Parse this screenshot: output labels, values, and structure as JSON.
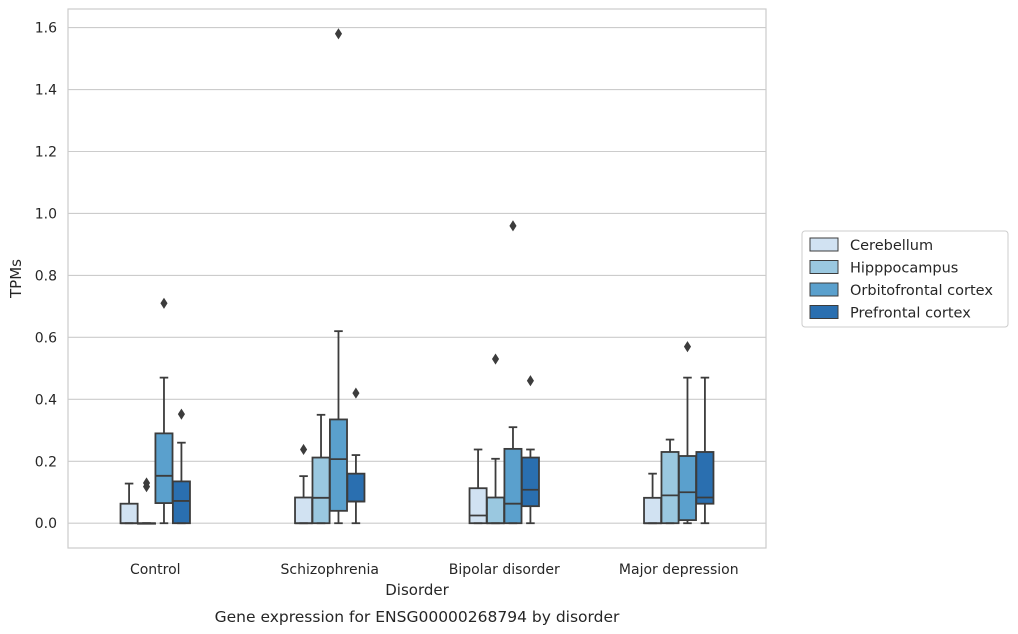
{
  "chart_data": {
    "type": "box",
    "xlabel": "Disorder",
    "ylabel": "TPMs",
    "caption": "Gene expression for ENSG00000268794 by disorder",
    "categories": [
      "Control",
      "Schizophrenia",
      "Bipolar disorder",
      "Major depression"
    ],
    "ylim": [
      -0.08,
      1.66
    ],
    "yticks": [
      "0.0",
      "0.2",
      "0.4",
      "0.6",
      "0.8",
      "1.0",
      "1.2",
      "1.4",
      "1.6"
    ],
    "grid": true,
    "legend_placement": "right",
    "series": [
      {
        "name": "Cerebellum",
        "color": "#d1e2f2",
        "boxes": [
          {
            "min": 0.0,
            "q1": 0.0,
            "median": 0.0,
            "q3": 0.063,
            "max": 0.128,
            "outliers": []
          },
          {
            "min": 0.0,
            "q1": 0.0,
            "median": 0.0,
            "q3": 0.083,
            "max": 0.152,
            "outliers": [
              0.238
            ]
          },
          {
            "min": 0.0,
            "q1": 0.0,
            "median": 0.025,
            "q3": 0.113,
            "max": 0.238,
            "outliers": []
          },
          {
            "min": 0.0,
            "q1": 0.0,
            "median": 0.0,
            "q3": 0.082,
            "max": 0.16,
            "outliers": []
          }
        ]
      },
      {
        "name": "Hipppocampus",
        "color": "#9ac8e0",
        "boxes": [
          {
            "min": 0.0,
            "q1": 0.0,
            "median": 0.0,
            "q3": 0.0,
            "max": 0.0,
            "outliers": [
              0.118,
              0.13
            ]
          },
          {
            "min": 0.0,
            "q1": 0.0,
            "median": 0.082,
            "q3": 0.212,
            "max": 0.35,
            "outliers": []
          },
          {
            "min": 0.0,
            "q1": 0.0,
            "median": 0.0,
            "q3": 0.083,
            "max": 0.208,
            "outliers": [
              0.53
            ]
          },
          {
            "min": 0.0,
            "q1": 0.0,
            "median": 0.09,
            "q3": 0.23,
            "max": 0.27,
            "outliers": []
          }
        ]
      },
      {
        "name": "Orbitofrontal cortex",
        "color": "#5aa0cd",
        "boxes": [
          {
            "min": 0.0,
            "q1": 0.065,
            "median": 0.153,
            "q3": 0.29,
            "max": 0.47,
            "outliers": [
              0.71
            ]
          },
          {
            "min": 0.0,
            "q1": 0.04,
            "median": 0.207,
            "q3": 0.335,
            "max": 0.62,
            "outliers": [
              1.58
            ]
          },
          {
            "min": 0.0,
            "q1": 0.0,
            "median": 0.063,
            "q3": 0.24,
            "max": 0.31,
            "outliers": [
              0.96
            ]
          },
          {
            "min": 0.0,
            "q1": 0.01,
            "median": 0.1,
            "q3": 0.217,
            "max": 0.47,
            "outliers": [
              0.57
            ]
          }
        ]
      },
      {
        "name": "Prefrontal cortex",
        "color": "#2a6fb0",
        "boxes": [
          {
            "min": 0.0,
            "q1": 0.0,
            "median": 0.072,
            "q3": 0.135,
            "max": 0.26,
            "outliers": [
              0.352
            ]
          },
          {
            "min": 0.0,
            "q1": 0.07,
            "median": 0.07,
            "q3": 0.16,
            "max": 0.22,
            "outliers": [
              0.42
            ]
          },
          {
            "min": 0.0,
            "q1": 0.055,
            "median": 0.108,
            "q3": 0.212,
            "max": 0.238,
            "outliers": [
              0.46
            ]
          },
          {
            "min": 0.0,
            "q1": 0.063,
            "median": 0.083,
            "q3": 0.23,
            "max": 0.47,
            "outliers": []
          }
        ]
      }
    ]
  }
}
